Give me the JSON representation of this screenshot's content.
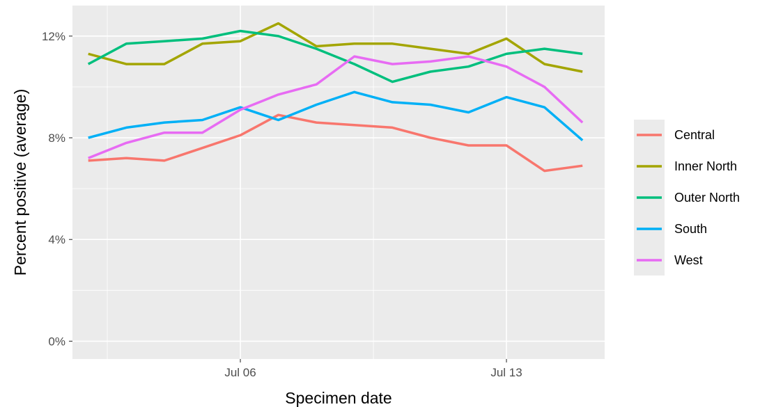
{
  "chart_data": {
    "type": "line",
    "xlabel": "Specimen date",
    "ylabel": "Percent positive (average)",
    "x": [
      "2020-07-02",
      "2020-07-03",
      "2020-07-04",
      "2020-07-05",
      "2020-07-06",
      "2020-07-07",
      "2020-07-08",
      "2020-07-09",
      "2020-07-10",
      "2020-07-11",
      "2020-07-12",
      "2020-07-13",
      "2020-07-14",
      "2020-07-15"
    ],
    "x_range": [
      "2020-07-01T14:00",
      "2020-07-15T14:00"
    ],
    "x_ticks": [
      {
        "value": "2020-07-06",
        "label": "Jul 06"
      },
      {
        "value": "2020-07-13",
        "label": "Jul 13"
      }
    ],
    "ylim": [
      -0.7,
      13.2
    ],
    "y_ticks": [
      {
        "value": 0,
        "label": "0%"
      },
      {
        "value": 4,
        "label": "4%"
      },
      {
        "value": 8,
        "label": "8%"
      },
      {
        "value": 12,
        "label": "12%"
      }
    ],
    "grid": true,
    "legend_position": "right",
    "series": [
      {
        "name": "Central",
        "color": "#F8766D",
        "values": [
          7.1,
          7.2,
          7.1,
          7.6,
          8.1,
          8.9,
          8.6,
          8.5,
          8.4,
          8.0,
          7.7,
          7.7,
          6.7,
          6.9
        ]
      },
      {
        "name": "Inner North",
        "color": "#A3A500",
        "values": [
          11.3,
          10.9,
          10.9,
          11.7,
          11.8,
          12.5,
          11.6,
          11.7,
          11.7,
          11.5,
          11.3,
          11.9,
          10.9,
          10.6
        ]
      },
      {
        "name": "Outer North",
        "color": "#00BF7D",
        "values": [
          10.9,
          11.7,
          11.8,
          11.9,
          12.2,
          12.0,
          11.5,
          10.9,
          10.2,
          10.6,
          10.8,
          11.3,
          11.5,
          11.3
        ]
      },
      {
        "name": "South",
        "color": "#00B0F6",
        "values": [
          8.0,
          8.4,
          8.6,
          8.7,
          9.2,
          8.7,
          9.3,
          9.8,
          9.4,
          9.3,
          9.0,
          9.6,
          9.2,
          7.9
        ]
      },
      {
        "name": "West",
        "color": "#E76BF3",
        "values": [
          7.2,
          7.8,
          8.2,
          8.2,
          9.1,
          9.7,
          10.1,
          11.2,
          10.9,
          11.0,
          11.2,
          10.8,
          10.0,
          8.6
        ]
      }
    ]
  }
}
